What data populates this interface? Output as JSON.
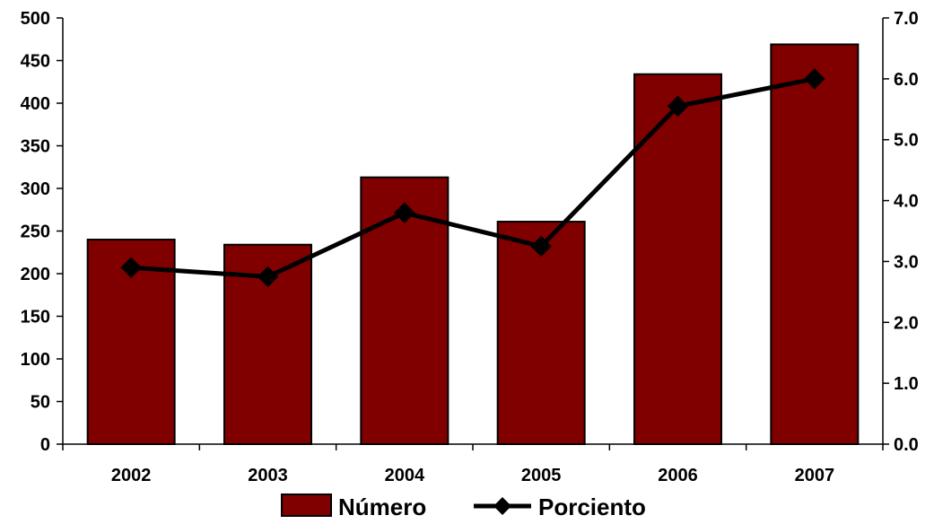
{
  "chart_data": {
    "type": "bar",
    "categories": [
      "2002",
      "2003",
      "2004",
      "2005",
      "2006",
      "2007"
    ],
    "series": [
      {
        "name": "Número",
        "type": "bar",
        "axis": "left",
        "color": "#800000",
        "values": [
          240,
          234,
          313,
          261,
          434,
          469
        ]
      },
      {
        "name": "Porciento",
        "type": "line",
        "axis": "right",
        "color": "#000000",
        "marker": "diamond",
        "values": [
          2.9,
          2.75,
          3.8,
          3.25,
          5.55,
          6.0
        ]
      }
    ],
    "y_left": {
      "min": 0,
      "max": 500,
      "ticks": [
        "0",
        "50",
        "100",
        "150",
        "200",
        "250",
        "300",
        "350",
        "400",
        "450",
        "500"
      ]
    },
    "y_right": {
      "min": 0,
      "max": 7,
      "ticks": [
        "0.0",
        "1.0",
        "2.0",
        "3.0",
        "4.0",
        "5.0",
        "6.0",
        "7.0"
      ]
    },
    "title": "",
    "xlabel": "",
    "ylabel": "",
    "grid": false,
    "legend_position": "bottom"
  }
}
